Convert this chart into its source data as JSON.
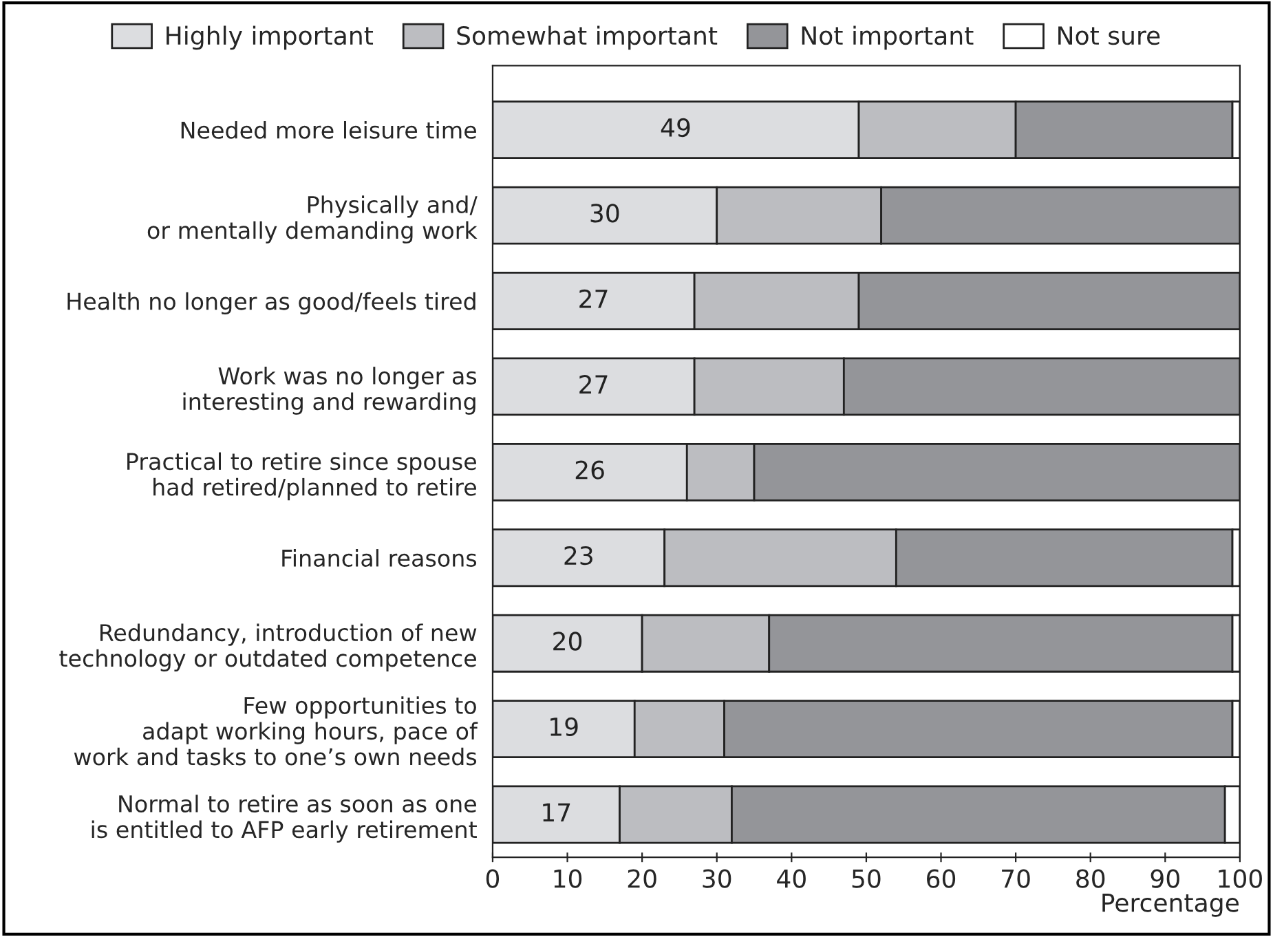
{
  "chart_data": {
    "type": "bar",
    "orientation": "horizontal",
    "stacked": true,
    "categories": [
      "Needed more leisure time",
      "Physically and/\nor mentally demanding work",
      "Health no longer as good/feels tired",
      "Work was no longer as\ninteresting and rewarding",
      "Practical to retire since spouse\nhad retired/planned to retire",
      "Financial reasons",
      "Redundancy, introduction of new\ntechnology or outdated competence",
      "Few opportunities to\nadapt working hours, pace of\nwork and tasks to one’s own needs",
      "Normal to retire as soon as one\nis entitled to AFP early retirement"
    ],
    "series": [
      {
        "name": "Highly important",
        "color": "#dcdde0",
        "values": [
          49,
          30,
          27,
          27,
          26,
          23,
          20,
          19,
          17
        ],
        "value_labels": [
          "49",
          "30",
          "27",
          "27",
          "26",
          "23",
          "20",
          "19",
          "17"
        ]
      },
      {
        "name": "Somewhat important",
        "color": "#bcbdc1",
        "values": [
          21,
          22,
          22,
          20,
          9,
          31,
          17,
          12,
          15
        ]
      },
      {
        "name": "Not important",
        "color": "#949599",
        "values": [
          29,
          48,
          51,
          53,
          65,
          45,
          62,
          68,
          66
        ]
      },
      {
        "name": "Not sure",
        "color": "#ffffff",
        "values": [
          1,
          null,
          null,
          null,
          null,
          1,
          1,
          1,
          2
        ]
      }
    ],
    "xlabel": "Percentage",
    "xlim": [
      0,
      100
    ],
    "xticks": [
      0,
      10,
      20,
      30,
      40,
      50,
      60,
      70,
      80,
      90,
      100
    ],
    "legend": "top",
    "grid": false
  }
}
